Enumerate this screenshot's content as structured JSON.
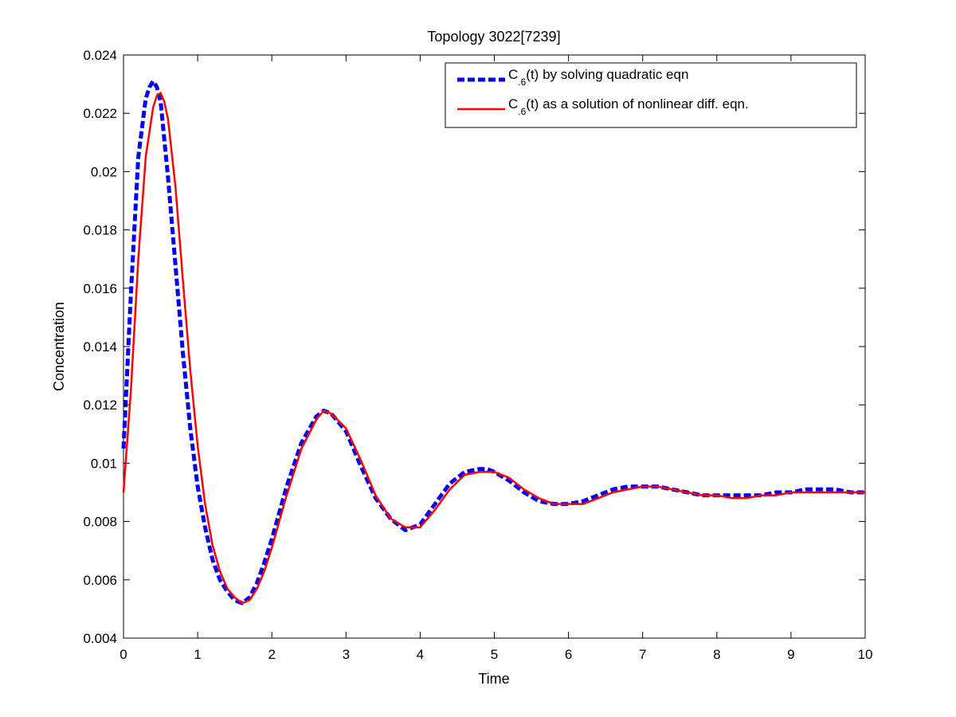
{
  "chart_data": {
    "type": "line",
    "title": "Topology 3022[7239]",
    "xlabel": "Time",
    "ylabel": "Concentration",
    "xlim": [
      0,
      10
    ],
    "ylim": [
      0.004,
      0.024
    ],
    "xticks": [
      0,
      1,
      2,
      3,
      4,
      5,
      6,
      7,
      8,
      9,
      10
    ],
    "xtick_labels": [
      "0",
      "1",
      "2",
      "3",
      "4",
      "5",
      "6",
      "7",
      "8",
      "9",
      "10"
    ],
    "yticks": [
      0.004,
      0.006,
      0.008,
      0.01,
      0.012,
      0.014,
      0.016,
      0.018,
      0.02,
      0.022,
      0.024
    ],
    "ytick_labels": [
      "0.004",
      "0.006",
      "0.008",
      "0.01",
      "0.012",
      "0.014",
      "0.016",
      "0.018",
      "0.02",
      "0.022",
      "0.024"
    ],
    "grid": false,
    "legend_position": "top-right",
    "series": [
      {
        "legend_prefix": "C",
        "legend_subscript": ".6",
        "legend_suffix": "(t) by solving quadratic eqn",
        "color": "#0000ff",
        "style": "dashed",
        "x": [
          0,
          0.1,
          0.2,
          0.3,
          0.35,
          0.4,
          0.45,
          0.5,
          0.6,
          0.7,
          0.8,
          0.9,
          1.0,
          1.1,
          1.2,
          1.3,
          1.4,
          1.5,
          1.6,
          1.7,
          1.8,
          1.9,
          2.0,
          2.2,
          2.4,
          2.6,
          2.7,
          2.8,
          3.0,
          3.2,
          3.4,
          3.6,
          3.8,
          4.0,
          4.2,
          4.4,
          4.6,
          4.8,
          4.9,
          5.0,
          5.2,
          5.4,
          5.6,
          5.8,
          6.0,
          6.2,
          6.4,
          6.6,
          6.8,
          7.0,
          7.1,
          7.2,
          7.4,
          7.6,
          7.8,
          8.0,
          8.2,
          8.4,
          8.6,
          8.8,
          9.0,
          9.2,
          9.4,
          9.6,
          9.8,
          10.0
        ],
        "y": [
          0.0105,
          0.0158,
          0.0205,
          0.0225,
          0.0229,
          0.0231,
          0.0229,
          0.0224,
          0.0198,
          0.0168,
          0.0138,
          0.0112,
          0.0092,
          0.0078,
          0.0067,
          0.006,
          0.0056,
          0.0053,
          0.0052,
          0.0054,
          0.0059,
          0.0066,
          0.0074,
          0.0092,
          0.0107,
          0.0116,
          0.0118,
          0.0117,
          0.0111,
          0.0099,
          0.0088,
          0.0081,
          0.0077,
          0.0079,
          0.0086,
          0.0093,
          0.0097,
          0.0098,
          0.0098,
          0.0097,
          0.0094,
          0.009,
          0.0087,
          0.0086,
          0.0086,
          0.0087,
          0.0089,
          0.0091,
          0.0092,
          0.0092,
          0.0092,
          0.0092,
          0.0091,
          0.009,
          0.0089,
          0.0089,
          0.0089,
          0.0089,
          0.0089,
          0.009,
          0.009,
          0.0091,
          0.0091,
          0.0091,
          0.009,
          0.009
        ]
      },
      {
        "legend_prefix": "C",
        "legend_subscript": ".6",
        "legend_suffix": "(t) as a solution of nonlinear diff. eqn.",
        "color": "#ff0000",
        "style": "solid",
        "x": [
          0,
          0.1,
          0.2,
          0.3,
          0.4,
          0.45,
          0.5,
          0.55,
          0.6,
          0.7,
          0.8,
          0.9,
          1.0,
          1.1,
          1.2,
          1.3,
          1.4,
          1.5,
          1.6,
          1.7,
          1.8,
          1.9,
          2.0,
          2.2,
          2.4,
          2.6,
          2.7,
          2.8,
          3.0,
          3.2,
          3.4,
          3.6,
          3.8,
          4.0,
          4.2,
          4.4,
          4.6,
          4.8,
          4.9,
          5.0,
          5.2,
          5.4,
          5.6,
          5.8,
          6.0,
          6.2,
          6.4,
          6.6,
          6.8,
          7.0,
          7.1,
          7.2,
          7.4,
          7.6,
          7.8,
          8.0,
          8.2,
          8.4,
          8.6,
          8.8,
          9.0,
          9.2,
          9.4,
          9.6,
          9.8,
          10.0
        ],
        "y": [
          0.009,
          0.0125,
          0.017,
          0.0205,
          0.0222,
          0.0226,
          0.0227,
          0.0224,
          0.0218,
          0.0195,
          0.0163,
          0.0132,
          0.0106,
          0.0086,
          0.0072,
          0.0063,
          0.0057,
          0.0054,
          0.0052,
          0.0053,
          0.0057,
          0.0063,
          0.0071,
          0.0089,
          0.0105,
          0.0115,
          0.0118,
          0.0117,
          0.0112,
          0.0101,
          0.0089,
          0.0081,
          0.0078,
          0.0078,
          0.0084,
          0.0091,
          0.0096,
          0.0097,
          0.0097,
          0.0097,
          0.0095,
          0.0091,
          0.0088,
          0.0086,
          0.0086,
          0.0086,
          0.0088,
          0.009,
          0.0091,
          0.0092,
          0.0092,
          0.0092,
          0.0091,
          0.009,
          0.0089,
          0.0089,
          0.0088,
          0.0088,
          0.0089,
          0.0089,
          0.009,
          0.009,
          0.009,
          0.009,
          0.009,
          0.009
        ]
      }
    ]
  }
}
